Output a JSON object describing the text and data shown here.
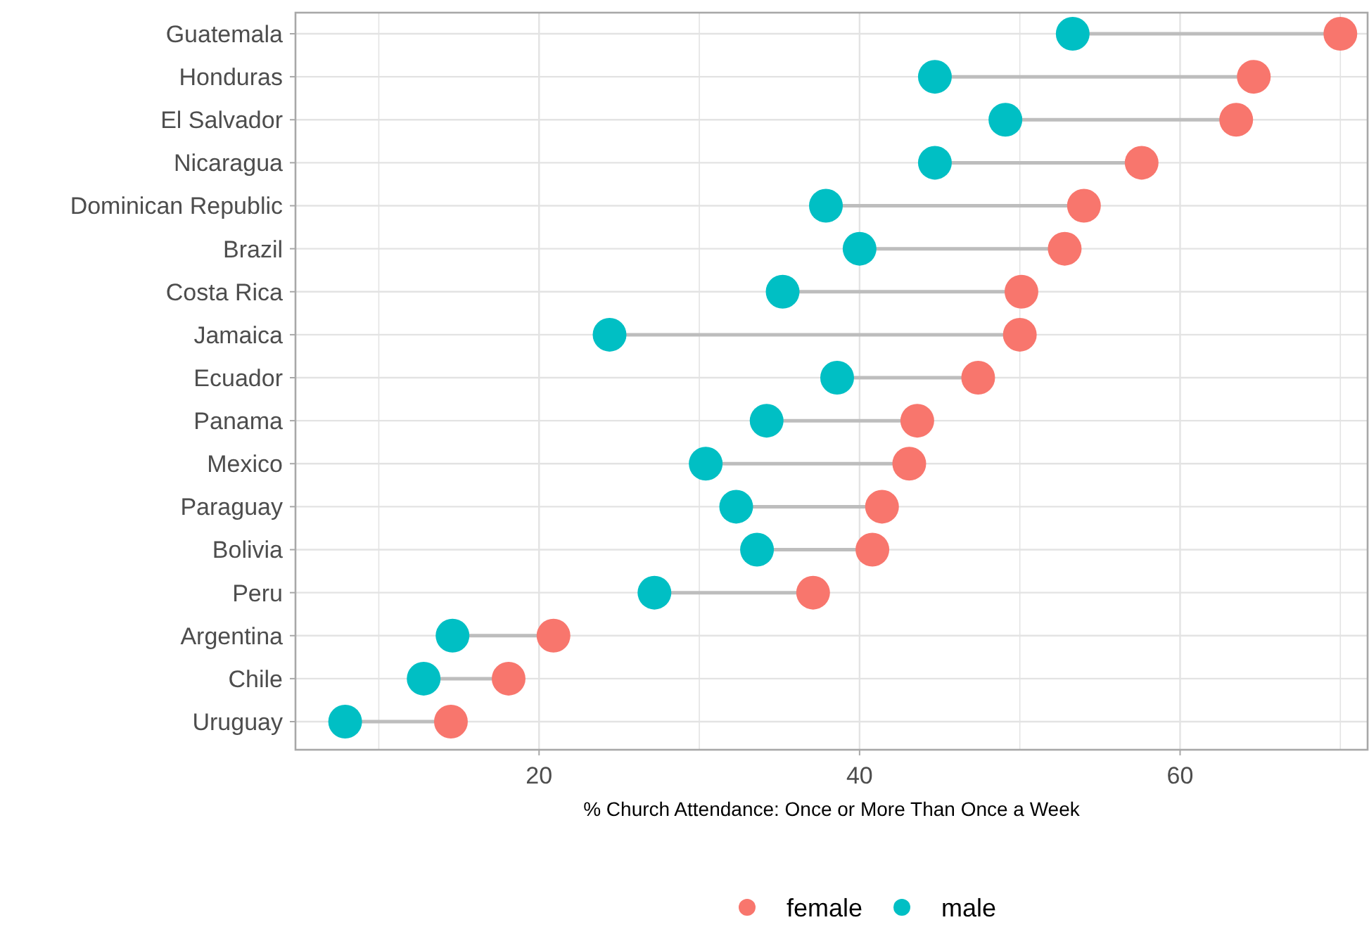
{
  "chart_data": {
    "type": "scatter",
    "orientation": "horizontal",
    "xlabel": "% Church Attendance: Once or More Than Once a Week",
    "categories": [
      "Guatemala",
      "Honduras",
      "El Salvador",
      "Nicaragua",
      "Dominican Republic",
      "Brazil",
      "Costa Rica",
      "Jamaica",
      "Ecuador",
      "Panama",
      "Mexico",
      "Paraguay",
      "Bolivia",
      "Peru",
      "Argentina",
      "Chile",
      "Uruguay"
    ],
    "series": [
      {
        "name": "female",
        "color": "#f8766d",
        "values": [
          70.0,
          64.6,
          63.5,
          57.6,
          54.0,
          52.8,
          50.1,
          50.0,
          47.4,
          43.6,
          43.1,
          41.4,
          40.8,
          37.1,
          20.9,
          18.1,
          14.5
        ]
      },
      {
        "name": "male",
        "color": "#00bfc4",
        "values": [
          53.3,
          44.7,
          49.1,
          44.7,
          37.9,
          40.0,
          35.2,
          24.4,
          38.6,
          34.2,
          30.4,
          32.3,
          33.6,
          27.2,
          14.6,
          12.8,
          7.9
        ]
      }
    ],
    "xlim": [
      4.8,
      71.7
    ],
    "xticks": [
      {
        "value": 10,
        "label": null
      },
      20,
      {
        "value": 30,
        "label": null
      },
      40,
      {
        "value": 50,
        "label": null
      },
      60,
      {
        "value": 70,
        "label": null
      }
    ],
    "grid": true,
    "legend": "bottom",
    "marker": "circle"
  }
}
